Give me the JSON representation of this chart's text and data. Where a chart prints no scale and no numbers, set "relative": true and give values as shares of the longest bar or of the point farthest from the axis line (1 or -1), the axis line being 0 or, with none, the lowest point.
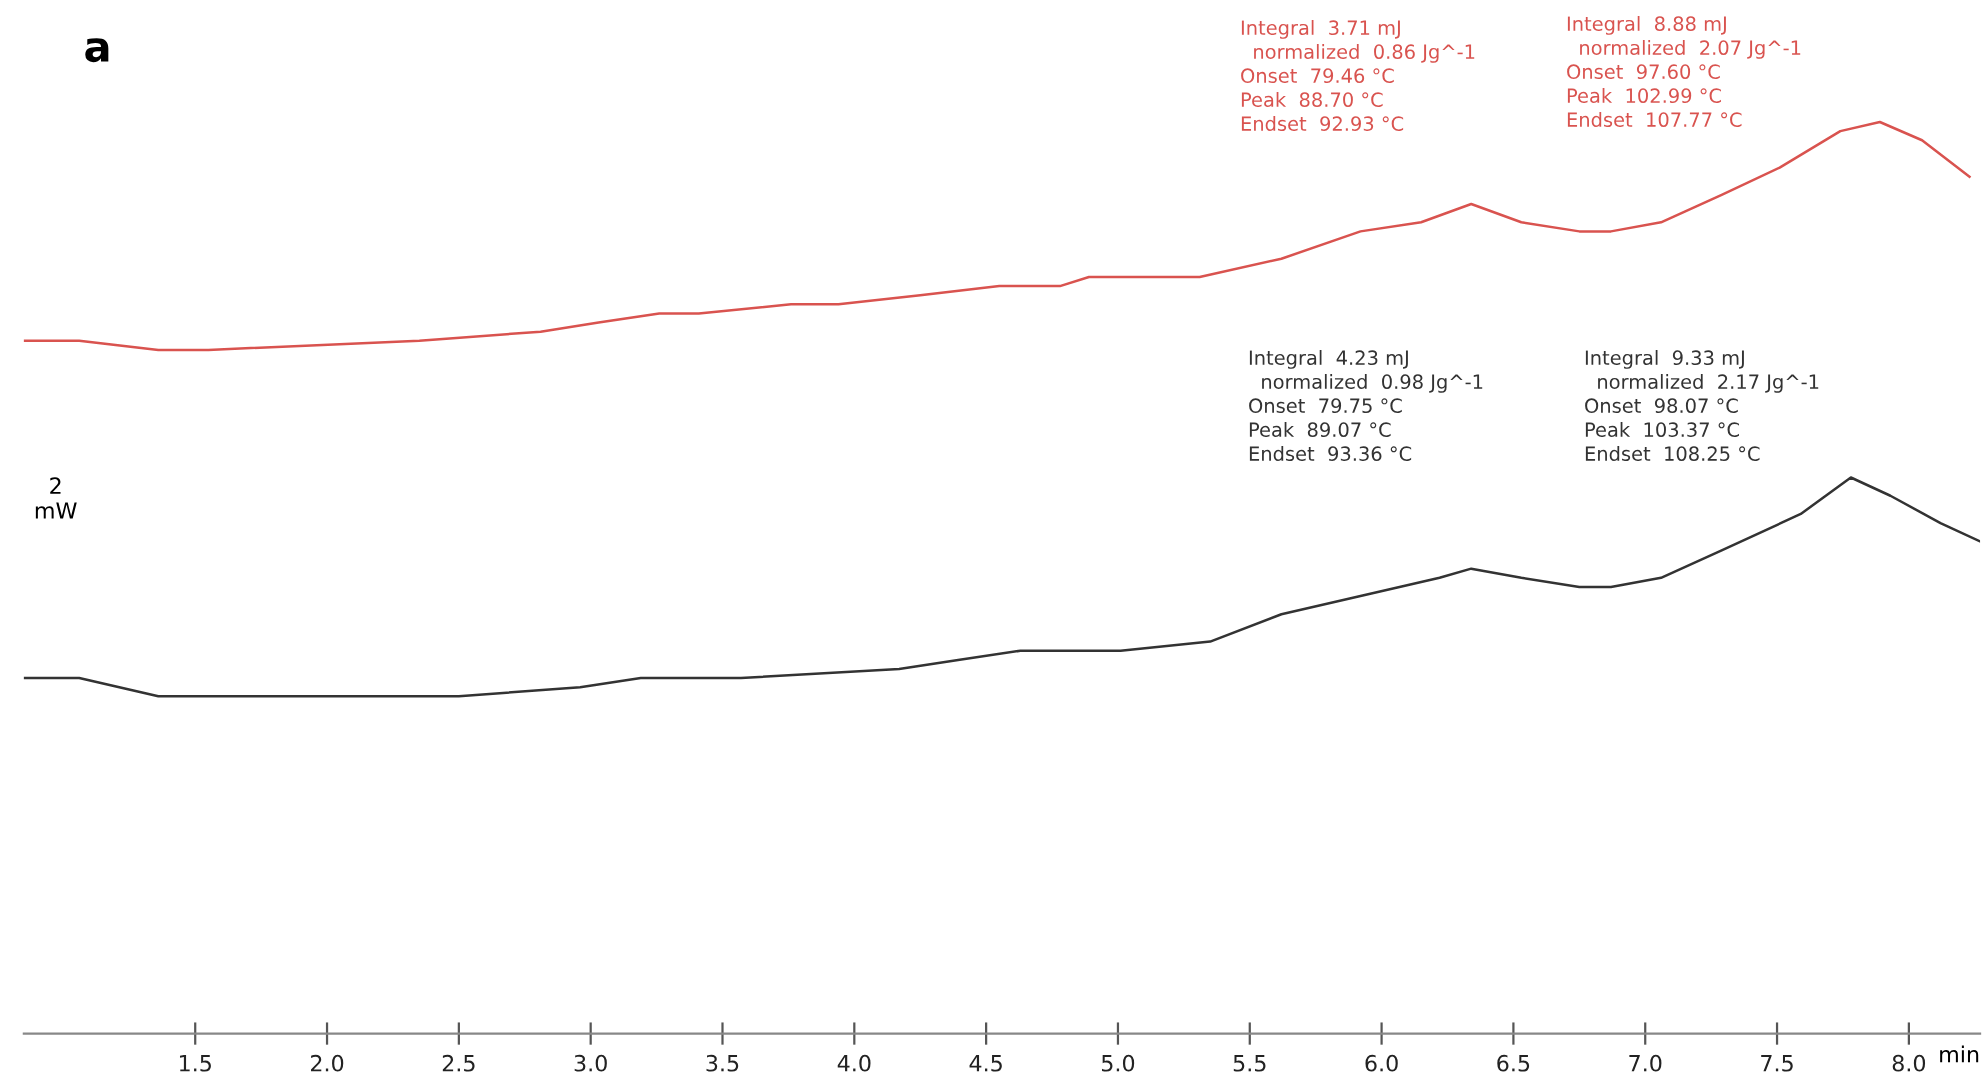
{
  "chart_data": {
    "type": "line",
    "title": "a",
    "ylabel": "2\nmW",
    "xlabel": "min",
    "relative": true,
    "xlim": [
      0.85,
      8.27
    ],
    "xticks": [
      1.5,
      {
        "value": 2.0,
        "label": "2.0"
      },
      2.5,
      {
        "value": 3.0,
        "label": "3.0"
      },
      3.5,
      {
        "value": 4.0,
        "label": "4.0"
      },
      4.5,
      {
        "value": 5.0,
        "label": "5.0"
      },
      5.5,
      {
        "value": 6.0,
        "label": "6.0"
      },
      6.5,
      {
        "value": 7.0,
        "label": "7.0"
      },
      7.5,
      {
        "value": 8.0,
        "label": "8.0"
      }
    ],
    "grid": false,
    "series": [
      {
        "color": "#d9534f",
        "x": [
          0.85,
          1.06,
          1.36,
          1.55,
          2.35,
          2.81,
          3.03,
          3.26,
          3.41,
          3.76,
          3.94,
          4.25,
          4.55,
          4.78,
          4.89,
          5.31,
          5.62,
          5.92,
          6.15,
          6.34,
          6.53,
          6.75,
          6.87,
          7.06,
          7.29,
          7.51,
          7.74,
          7.89,
          8.05,
          8.23
        ],
        "values": [
          0.76,
          0.76,
          0.75,
          0.75,
          0.76,
          0.77,
          0.78,
          0.79,
          0.79,
          0.8,
          0.8,
          0.81,
          0.82,
          0.82,
          0.83,
          0.83,
          0.85,
          0.88,
          0.89,
          0.91,
          0.89,
          0.88,
          0.88,
          0.89,
          0.92,
          0.95,
          0.99,
          1.0,
          0.98,
          0.94
        ]
      },
      {
        "color": "#333333",
        "x": [
          0.85,
          1.06,
          1.36,
          2.01,
          2.5,
          2.96,
          3.19,
          3.57,
          4.17,
          4.4,
          4.63,
          4.78,
          5.01,
          5.35,
          5.62,
          5.92,
          6.22,
          6.34,
          6.53,
          6.75,
          6.87,
          7.06,
          7.29,
          7.59,
          7.78,
          7.93,
          8.12,
          8.27
        ],
        "values": [
          0.39,
          0.39,
          0.37,
          0.37,
          0.37,
          0.38,
          0.39,
          0.39,
          0.4,
          0.41,
          0.42,
          0.42,
          0.42,
          0.43,
          0.46,
          0.48,
          0.5,
          0.51,
          0.5,
          0.49,
          0.49,
          0.5,
          0.53,
          0.57,
          0.61,
          0.59,
          0.56,
          0.54
        ]
      }
    ],
    "annotations": [
      "Integral  3.71 mJ\n  normalized  0.86 Jg^-1\nOnset  79.46 °C\nPeak  88.70 °C\nEndset  92.93 °C",
      "Integral  8.88 mJ\n  normalized  2.07 Jg^-1\nOnset  97.60 °C\nPeak  102.99 °C\nEndset  107.77 °C",
      "Integral  4.23 mJ\n  normalized  0.98 Jg^-1\nOnset  79.75 °C\nPeak  89.07 °C\nEndset  93.36 °C",
      "Integral  9.33 mJ\n  normalized  2.17 Jg^-1\nOnset  98.07 °C\nPeak  103.37 °C\nEndset  108.25 °C"
    ]
  }
}
